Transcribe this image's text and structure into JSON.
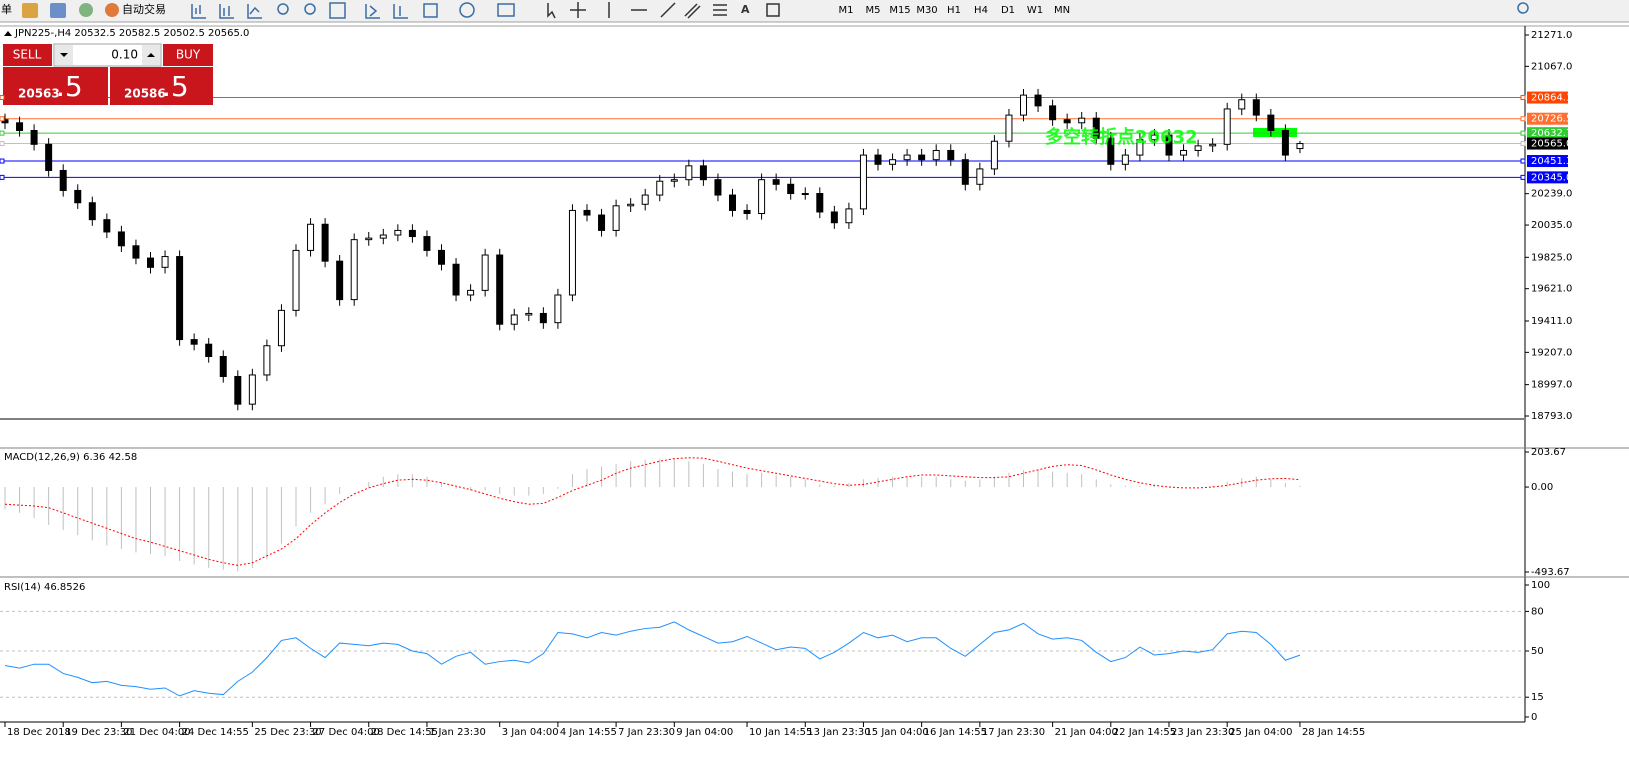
{
  "toolbar": {
    "left_text": "单",
    "auto_trade": "自动交易",
    "timeframes": [
      "M1",
      "M5",
      "M15",
      "M30",
      "H1",
      "H4",
      "D1",
      "W1",
      "MN"
    ]
  },
  "trade_panel": {
    "sell": "SELL",
    "buy": "BUY",
    "lot": "0.10",
    "bid_main": "20563",
    "bid_tail": ".5",
    "ask_main": "20586",
    "ask_tail": ".5"
  },
  "chart_data": [
    {
      "type": "candlestick",
      "title": "JPN225-,H4  20532.5 20582.5 20502.5 20565.0",
      "categories": [
        "18 Dec 2018",
        null,
        null,
        null,
        "19 Dec 23:30",
        null,
        null,
        null,
        "21 Dec 04:00",
        null,
        null,
        null,
        "24 Dec 14:55",
        null,
        null,
        null,
        null,
        "25 Dec 23:30",
        null,
        null,
        null,
        "27 Dec 04:00",
        null,
        null,
        null,
        "28 Dec 14:55",
        null,
        null,
        null,
        "1 Jan 23:30",
        null,
        null,
        null,
        null,
        "3 Jan 04:00",
        null,
        null,
        null,
        "4 Jan 14:55",
        null,
        null,
        null,
        "7 Jan 23:30",
        null,
        null,
        null,
        "9 Jan 04:00",
        null,
        null,
        null,
        null,
        "10 Jan 14:55",
        null,
        null,
        null,
        "13 Jan 23:30",
        null,
        null,
        null,
        "15 Jan 04:00",
        null,
        null,
        null,
        "16 Jan 14:55",
        null,
        null,
        null,
        "17 Jan 23:30",
        null,
        null,
        null,
        null,
        "21 Jan 04:00",
        null,
        null,
        null,
        "22 Jan 14:55",
        null,
        null,
        null,
        "23 Jan 23:30",
        null,
        null,
        null,
        "25 Jan 04:00",
        null,
        null,
        null,
        null,
        "28 Jan 14:55"
      ],
      "open": [
        20720,
        20700,
        20650,
        20560,
        20390,
        20260,
        20180,
        20070,
        19990,
        19900,
        19820,
        19760,
        19830,
        19290,
        19260,
        19180,
        19050,
        18870,
        19060,
        19250,
        19480,
        19870,
        20040,
        19800,
        19550,
        19940,
        19950,
        19970,
        20000,
        19960,
        19870,
        19780,
        19580,
        19610,
        19840,
        19390,
        19450,
        19460,
        19400,
        19580,
        20130,
        20100,
        20000,
        20160,
        20170,
        20230,
        20320,
        20330,
        20420,
        20330,
        20230,
        20130,
        20110,
        20330,
        20300,
        20240,
        20240,
        20120,
        20050,
        20140,
        20490,
        20430,
        20460,
        20490,
        20460,
        20520,
        20460,
        20300,
        20400,
        20580,
        20750,
        20880,
        20810,
        20720,
        20700,
        20730,
        20600,
        20430,
        20490,
        20590,
        20620,
        20490,
        20520,
        20550,
        20560,
        20790,
        20850,
        20750,
        20650,
        20532.5
      ],
      "high": [
        20760,
        20740,
        20690,
        20600,
        20430,
        20300,
        20220,
        20110,
        20030,
        19940,
        19860,
        19870,
        19870,
        19330,
        19300,
        19220,
        19090,
        19100,
        19290,
        19520,
        19910,
        20080,
        20080,
        19840,
        19980,
        19990,
        20010,
        20040,
        20040,
        20000,
        19910,
        19820,
        19650,
        19880,
        19880,
        19490,
        19500,
        19500,
        19620,
        20170,
        20170,
        20140,
        20200,
        20210,
        20270,
        20360,
        20370,
        20460,
        20460,
        20370,
        20270,
        20170,
        20370,
        20370,
        20340,
        20280,
        20280,
        20160,
        20180,
        20530,
        20530,
        20500,
        20530,
        20530,
        20560,
        20560,
        20500,
        20440,
        20620,
        20790,
        20920,
        20920,
        20850,
        20760,
        20770,
        20770,
        20640,
        20530,
        20630,
        20660,
        20660,
        20560,
        20590,
        20600,
        20830,
        20890,
        20890,
        20790,
        20690,
        20582.5
      ],
      "low": [
        20660,
        20610,
        20520,
        20350,
        20220,
        20140,
        20030,
        19950,
        19860,
        19780,
        19720,
        19720,
        19250,
        19220,
        19140,
        19010,
        18830,
        18830,
        19020,
        19210,
        19440,
        19830,
        19760,
        19510,
        19510,
        19900,
        19910,
        19930,
        19920,
        19830,
        19740,
        19540,
        19540,
        19570,
        19350,
        19350,
        19410,
        19360,
        19360,
        19540,
        20060,
        19960,
        19960,
        20120,
        20130,
        20190,
        20280,
        20290,
        20290,
        20190,
        20090,
        20070,
        20070,
        20260,
        20200,
        20200,
        20080,
        20010,
        20010,
        20100,
        20390,
        20390,
        20420,
        20420,
        20420,
        20420,
        20260,
        20260,
        20360,
        20540,
        20710,
        20770,
        20680,
        20660,
        20660,
        20560,
        20390,
        20390,
        20450,
        20550,
        20450,
        20450,
        20480,
        20510,
        20520,
        20750,
        20710,
        20610,
        20450,
        20502.5
      ],
      "close": [
        20700,
        20650,
        20560,
        20390,
        20260,
        20180,
        20070,
        19990,
        19900,
        19820,
        19760,
        19830,
        19290,
        19260,
        19180,
        19050,
        18870,
        19060,
        19250,
        19480,
        19870,
        20040,
        19800,
        19550,
        19940,
        19950,
        19970,
        20000,
        19960,
        19870,
        19780,
        19580,
        19610,
        19840,
        19390,
        19450,
        19460,
        19400,
        19580,
        20130,
        20100,
        20000,
        20160,
        20170,
        20230,
        20320,
        20330,
        20420,
        20330,
        20230,
        20130,
        20110,
        20330,
        20300,
        20240,
        20240,
        20120,
        20050,
        20140,
        20490,
        20430,
        20460,
        20490,
        20460,
        20520,
        20460,
        20300,
        20400,
        20580,
        20750,
        20880,
        20810,
        20720,
        20700,
        20730,
        20600,
        20430,
        20490,
        20590,
        20620,
        20490,
        20520,
        20550,
        20560,
        20790,
        20850,
        20750,
        20650,
        20490,
        20565
      ],
      "up_color": "#ffffff",
      "down_color": "#000000",
      "ylim": [
        18780,
        21323
      ],
      "yticks": [
        {
          "value": 21271,
          "label": "21271.0"
        },
        {
          "value": 21067,
          "label": "21067.0"
        },
        {
          "value": 20239,
          "label": "20239.0"
        },
        {
          "value": 20035,
          "label": "20035.0"
        },
        {
          "value": 19825,
          "label": "19825.0"
        },
        {
          "value": 19621,
          "label": "19621.0"
        },
        {
          "value": 19411,
          "label": "19411.0"
        },
        {
          "value": 19207,
          "label": "19207.0"
        },
        {
          "value": 18997,
          "label": "18997.0"
        },
        {
          "value": 18793,
          "label": "18793.0"
        }
      ],
      "levels": [
        {
          "value": 20864.1,
          "label": "20864.1",
          "color": "#ff4500"
        },
        {
          "value": 20726.5,
          "label": "20726.5",
          "color": "#ff7030"
        },
        {
          "value": 20632.7,
          "label": "20632.7",
          "color": "#32cd32"
        },
        {
          "value": 20565,
          "label": "20565.0",
          "color": "#c0c0c0",
          "label_color": "#000000"
        },
        {
          "value": 20451.3,
          "label": "20451.3",
          "color": "#0000ff"
        },
        {
          "value": 20345,
          "label": "20345.0",
          "color": "#0000ff"
        }
      ],
      "annotation": {
        "text": "多空转折点20632",
        "color": "#00ff00"
      }
    },
    {
      "type": "macd",
      "title": "MACD(12,26,9) 6.36 42.58",
      "ylim": [
        -493.67,
        203.67
      ],
      "yticks": [
        203.67,
        {
          "value": 0,
          "label": "0.00"
        },
        -493.67
      ],
      "series": [
        {
          "name": "MACD",
          "color": "#c0c0c0",
          "values": [
            -130,
            -150,
            -180,
            -220,
            -250,
            -280,
            -310,
            -340,
            -360,
            -380,
            -390,
            -400,
            -430,
            -450,
            -470,
            -480,
            -490,
            -470,
            -420,
            -330,
            -230,
            -150,
            -100,
            -40,
            0,
            30,
            60,
            75,
            75,
            60,
            30,
            -10,
            -20,
            -20,
            -40,
            -50,
            -50,
            -40,
            -10,
            75,
            105,
            120,
            135,
            150,
            158,
            165,
            165,
            150,
            135,
            105,
            90,
            75,
            83,
            68,
            60,
            45,
            15,
            8,
            23,
            45,
            53,
            60,
            60,
            60,
            60,
            45,
            38,
            45,
            60,
            83,
            98,
            98,
            90,
            83,
            75,
            45,
            15,
            8,
            8,
            8,
            0,
            0,
            0,
            8,
            30,
            53,
            60,
            45,
            23,
            6.36
          ]
        },
        {
          "name": "Signal",
          "color": "#ff0000",
          "values": [
            -100,
            -105,
            -110,
            -120,
            -150,
            -180,
            -210,
            -240,
            -270,
            -300,
            -320,
            -345,
            -370,
            -395,
            -420,
            -440,
            -455,
            -440,
            -400,
            -360,
            -300,
            -220,
            -150,
            -90,
            -40,
            -5,
            20,
            40,
            45,
            40,
            25,
            5,
            -15,
            -40,
            -65,
            -85,
            -100,
            -95,
            -60,
            -20,
            10,
            40,
            80,
            110,
            130,
            150,
            165,
            170,
            168,
            150,
            130,
            110,
            95,
            80,
            65,
            50,
            35,
            20,
            10,
            15,
            30,
            45,
            60,
            70,
            70,
            65,
            60,
            55,
            55,
            60,
            80,
            100,
            120,
            130,
            125,
            100,
            70,
            45,
            25,
            10,
            0,
            -5,
            -5,
            0,
            10,
            25,
            40,
            48,
            50,
            42.58
          ]
        }
      ]
    },
    {
      "type": "line",
      "title": "RSI(14) 46.8526",
      "ylim": [
        0,
        100
      ],
      "yticks": [
        0,
        15,
        50,
        80,
        100
      ],
      "levels": [
        15,
        50,
        80
      ],
      "color": "#1e90ff",
      "values": [
        39,
        37,
        40,
        40,
        33,
        30,
        26,
        27,
        24,
        23,
        21,
        22,
        16,
        20,
        18,
        17,
        27,
        34,
        45,
        58,
        60,
        52,
        45,
        56,
        55,
        54,
        56,
        55,
        50,
        48,
        40,
        46,
        49,
        40,
        42,
        43,
        41,
        48,
        64,
        63,
        60,
        64,
        62,
        65,
        67,
        68,
        72,
        66,
        61,
        56,
        57,
        61,
        56,
        51,
        53,
        52,
        44,
        49,
        56,
        64,
        60,
        62,
        57,
        60,
        60,
        52,
        46,
        55,
        64,
        66,
        71,
        63,
        59,
        60,
        58,
        49,
        42,
        45,
        53,
        47,
        48,
        50,
        49,
        51,
        63,
        65,
        64,
        55,
        43,
        46.8526
      ]
    }
  ]
}
